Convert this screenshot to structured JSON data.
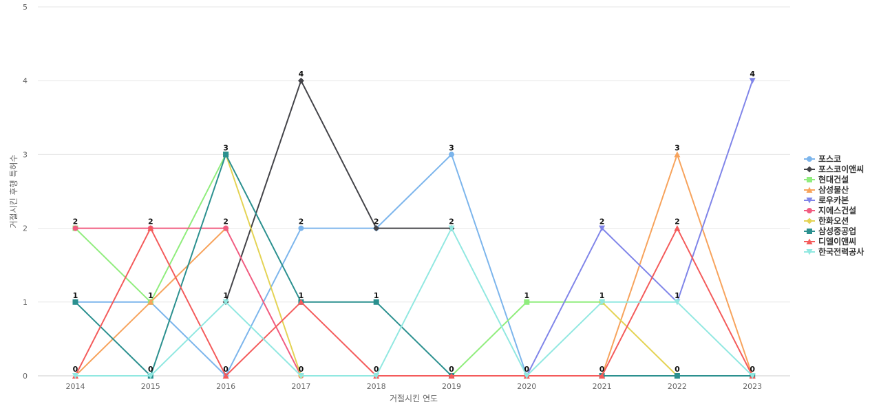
{
  "chart_data": {
    "type": "line",
    "xlabel": "거절시킨 연도",
    "ylabel": "거절시킨 후행 특허수",
    "categories": [
      "2014",
      "2015",
      "2016",
      "2017",
      "2018",
      "2019",
      "2020",
      "2021",
      "2022",
      "2023"
    ],
    "ylim": [
      0,
      5
    ],
    "yticks": [
      "0",
      "1",
      "2",
      "3",
      "4",
      "5"
    ],
    "grid": true,
    "legend_position": "right",
    "series": [
      {
        "name": "포스코",
        "color": "#7cb5ec",
        "marker": "circle",
        "values": [
          1,
          1,
          0,
          2,
          2,
          3,
          0,
          null,
          null,
          null
        ]
      },
      {
        "name": "포스코이앤씨",
        "color": "#434348",
        "marker": "diamond",
        "values": [
          null,
          null,
          1,
          4,
          2,
          2,
          null,
          null,
          null,
          null
        ]
      },
      {
        "name": "현대건설",
        "color": "#90ed7d",
        "marker": "square",
        "values": [
          2,
          1,
          3,
          null,
          null,
          0,
          1,
          1,
          null,
          null
        ]
      },
      {
        "name": "삼성물산",
        "color": "#f7a35c",
        "marker": "triangle",
        "values": [
          0,
          1,
          2,
          null,
          null,
          null,
          null,
          0,
          3,
          0
        ]
      },
      {
        "name": "로우카본",
        "color": "#8085e9",
        "marker": "triangle-down",
        "values": [
          null,
          null,
          null,
          null,
          null,
          null,
          0,
          2,
          1,
          4
        ]
      },
      {
        "name": "지에스건설",
        "color": "#f15c80",
        "marker": "circle",
        "values": [
          2,
          2,
          2,
          0,
          null,
          null,
          null,
          null,
          null,
          null
        ]
      },
      {
        "name": "한화오션",
        "color": "#e4d354",
        "marker": "diamond",
        "values": [
          null,
          null,
          3,
          0,
          null,
          null,
          null,
          1,
          0,
          null
        ]
      },
      {
        "name": "삼성중공업",
        "color": "#2b908f",
        "marker": "square",
        "values": [
          1,
          0,
          3,
          1,
          1,
          0,
          null,
          0,
          0,
          0
        ]
      },
      {
        "name": "디엘이앤씨",
        "color": "#f45b5b",
        "marker": "triangle",
        "values": [
          0,
          2,
          0,
          1,
          0,
          0,
          0,
          0,
          2,
          0
        ]
      },
      {
        "name": "한국전력공사",
        "color": "#91e8e1",
        "marker": "triangle-down",
        "values": [
          0,
          0,
          1,
          0,
          0,
          2,
          0,
          1,
          1,
          0
        ]
      }
    ],
    "data_labels": [
      {
        "x": "2014",
        "y": 2,
        "text": "2"
      },
      {
        "x": "2014",
        "y": 1,
        "text": "1"
      },
      {
        "x": "2014",
        "y": 0,
        "text": "0"
      },
      {
        "x": "2015",
        "y": 2,
        "text": "2"
      },
      {
        "x": "2015",
        "y": 1,
        "text": "1"
      },
      {
        "x": "2015",
        "y": 0,
        "text": "0"
      },
      {
        "x": "2016",
        "y": 3,
        "text": "3"
      },
      {
        "x": "2016",
        "y": 2,
        "text": "2"
      },
      {
        "x": "2016",
        "y": 1,
        "text": "1"
      },
      {
        "x": "2016",
        "y": 0,
        "text": "0"
      },
      {
        "x": "2017",
        "y": 4,
        "text": "4"
      },
      {
        "x": "2017",
        "y": 2,
        "text": "2"
      },
      {
        "x": "2017",
        "y": 1,
        "text": "1"
      },
      {
        "x": "2017",
        "y": 0,
        "text": "0"
      },
      {
        "x": "2018",
        "y": 2,
        "text": "2"
      },
      {
        "x": "2018",
        "y": 1,
        "text": "1"
      },
      {
        "x": "2018",
        "y": 0,
        "text": "0"
      },
      {
        "x": "2019",
        "y": 3,
        "text": "3"
      },
      {
        "x": "2019",
        "y": 2,
        "text": "2"
      },
      {
        "x": "2019",
        "y": 0,
        "text": "0"
      },
      {
        "x": "2020",
        "y": 1,
        "text": "1"
      },
      {
        "x": "2020",
        "y": 0,
        "text": "0"
      },
      {
        "x": "2021",
        "y": 2,
        "text": "2"
      },
      {
        "x": "2021",
        "y": 1,
        "text": "1"
      },
      {
        "x": "2021",
        "y": 0,
        "text": "0"
      },
      {
        "x": "2022",
        "y": 3,
        "text": "3"
      },
      {
        "x": "2022",
        "y": 2,
        "text": "2"
      },
      {
        "x": "2022",
        "y": 1,
        "text": "1"
      },
      {
        "x": "2022",
        "y": 0,
        "text": "0"
      },
      {
        "x": "2023",
        "y": 4,
        "text": "4"
      },
      {
        "x": "2023",
        "y": 0,
        "text": "0"
      }
    ]
  }
}
